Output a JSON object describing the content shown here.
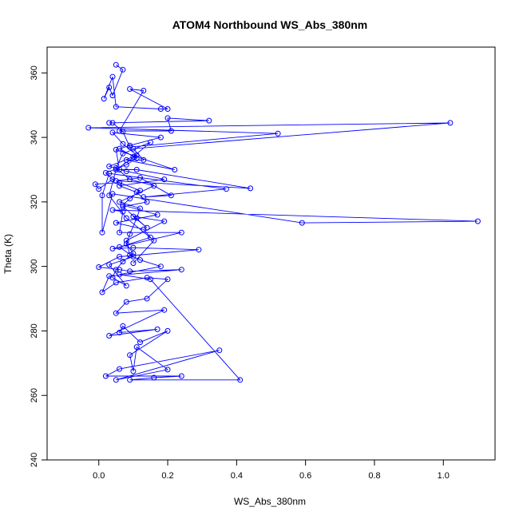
{
  "chart_data": {
    "type": "line",
    "title": "ATOM4 Northbound WS_Abs_380nm",
    "xlabel": "WS_Abs_380nm",
    "ylabel": "Theta (K)",
    "xlim": [
      -0.15,
      1.15
    ],
    "ylim": [
      240,
      368
    ],
    "x_ticks": [
      0.0,
      0.2,
      0.4,
      0.6,
      0.8,
      1.0
    ],
    "x_tick_labels": [
      "0.0",
      "0.2",
      "0.4",
      "0.6",
      "0.8",
      "1.0"
    ],
    "y_ticks": [
      240,
      260,
      280,
      300,
      320,
      340,
      360
    ],
    "y_tick_labels": [
      "240",
      "260",
      "280",
      "300",
      "320",
      "340",
      "360"
    ],
    "grid": false,
    "line_color": "#0000ff",
    "marker": "open-circle",
    "series": [
      {
        "x": [
          0.05,
          0.07,
          0.04,
          0.03,
          0.015,
          0.04,
          0.05,
          0.18,
          0.2,
          0.09,
          0.13,
          0.06,
          0.21,
          0.2,
          0.32,
          0.03,
          0.04,
          0.07,
          0.09,
          0.52,
          -0.03,
          1.02,
          0.1,
          0.13,
          0.08,
          0.22,
          0.05,
          0.06,
          0.11,
          0.44,
          0.05,
          0.12,
          0.21,
          0.13,
          0.37,
          0.03,
          0.01,
          0.01,
          0.04,
          0.59,
          1.1,
          0.04,
          0.07,
          0.06,
          0.24,
          0.04,
          0.1,
          0.29,
          0.06,
          0.0,
          0.06,
          0.09,
          0.24,
          0.03,
          0.01,
          0.05,
          0.14,
          0.2,
          0.14,
          0.08,
          0.05,
          0.19,
          0.03,
          0.17,
          0.06,
          0.07,
          0.12,
          0.2,
          0.09,
          0.1,
          0.11,
          0.2,
          0.05,
          0.35,
          0.06,
          0.02,
          0.24,
          0.16,
          0.09,
          0.41,
          0.15,
          0.06,
          0.18,
          0.12,
          0.09,
          0.08,
          0.19,
          0.1,
          0.14,
          0.07,
          0.14,
          0.11,
          0.06,
          0.19,
          0.08,
          0.03,
          0.1,
          0.15,
          0.07,
          0.05,
          0.09,
          0.16,
          0.06,
          0.12,
          0.11,
          0.09,
          0.08,
          0.1,
          0.07,
          0.05,
          0.04,
          0.08,
          0.03,
          0.1,
          0.06,
          0.15,
          0.13,
          0.05,
          0.17,
          0.07,
          0.09,
          0.12,
          0.06,
          -0.01,
          0.0,
          0.04,
          0.02,
          0.08,
          0.11,
          0.06,
          0.09,
          0.18,
          0.04,
          0.07,
          0.11,
          0.05,
          0.03,
          0.08,
          0.16,
          0.1
        ],
        "y": [
          362.5,
          361.0,
          353.0,
          355.5,
          352.0,
          358.8,
          349.5,
          348.8,
          348.8,
          355.0,
          354.5,
          342.0,
          342.0,
          346.0,
          345.2,
          344.5,
          344.5,
          341.8,
          337.0,
          341.2,
          343.0,
          344.5,
          336.5,
          333.0,
          333.0,
          330.0,
          336.2,
          330.0,
          330.0,
          324.2,
          326.5,
          327.5,
          322.0,
          321.5,
          324.0,
          328.8,
          322.0,
          310.5,
          322.5,
          313.5,
          314.0,
          317.5,
          317.0,
          310.5,
          310.5,
          305.5,
          305.8,
          305.2,
          303.0,
          299.8,
          299.0,
          298.5,
          299.0,
          297.0,
          292.0,
          295.0,
          296.5,
          296.0,
          290.0,
          289.0,
          285.5,
          286.5,
          278.5,
          280.5,
          279.5,
          281.5,
          276.5,
          280.0,
          272.5,
          267.5,
          275.0,
          268.0,
          264.8,
          274.0,
          268.2,
          266.0,
          266.0,
          265.5,
          264.8,
          264.8,
          296.0,
          297.5,
          300.0,
          302.0,
          303.5,
          308.0,
          314.0,
          315.5,
          312.0,
          318.5,
          320.0,
          323.0,
          325.0,
          327.0,
          329.5,
          331.0,
          334.0,
          338.5,
          335.0,
          330.5,
          327.0,
          325.0,
          320.0,
          318.0,
          315.0,
          310.0,
          307.0,
          304.0,
          301.5,
          299.0,
          296.5,
          294.0,
          300.5,
          303.0,
          306.0,
          309.0,
          311.5,
          313.5,
          316.0,
          319.0,
          321.0,
          323.5,
          326.0,
          325.5,
          324.0,
          327.0,
          329.0,
          331.5,
          333.5,
          336.5,
          337.5,
          340.0,
          341.5,
          338.0,
          334.5,
          330.0,
          322.0,
          315.0,
          308.0,
          301.0
        ]
      }
    ]
  }
}
